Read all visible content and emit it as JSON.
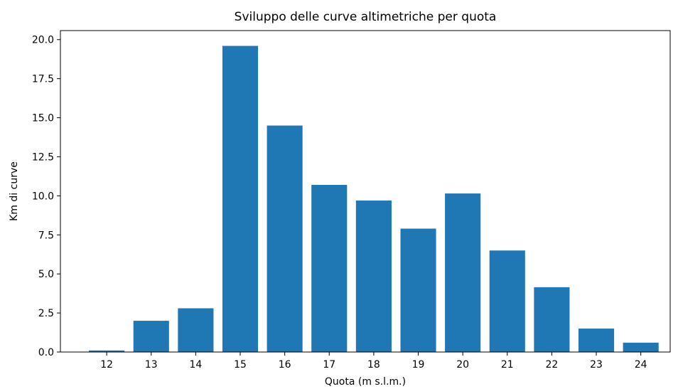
{
  "chart_data": {
    "type": "bar",
    "title": "Sviluppo delle curve altimetriche per quota",
    "x_label": "Quota (m s.l.m.)",
    "y_label": "Km di curve",
    "x": [
      12,
      13,
      14,
      15,
      16,
      17,
      18,
      19,
      20,
      21,
      22,
      23,
      24
    ],
    "values": [
      0.1,
      2.0,
      2.8,
      19.6,
      14.5,
      10.7,
      9.7,
      7.9,
      10.15,
      6.5,
      4.15,
      1.5,
      0.6
    ],
    "color": "#1f77b4",
    "xlim": [
      10.96,
      24.66
    ],
    "xticks": [
      12,
      13,
      14,
      15,
      16,
      17,
      18,
      19,
      20,
      21,
      22,
      23,
      24
    ],
    "ylim": [
      0,
      20.58
    ],
    "yticks": [
      {
        "value": 0,
        "label": "0.0"
      },
      {
        "value": 2.5,
        "label": "2.5"
      },
      {
        "value": 5,
        "label": "5.0"
      },
      {
        "value": 7.5,
        "label": "7.5"
      },
      {
        "value": 10,
        "label": "10.0"
      },
      {
        "value": 12.5,
        "label": "12.5"
      },
      {
        "value": 15,
        "label": "15.0"
      },
      {
        "value": 17.5,
        "label": "17.5"
      },
      {
        "value": 20,
        "label": "20.0"
      }
    ],
    "grid": false
  }
}
